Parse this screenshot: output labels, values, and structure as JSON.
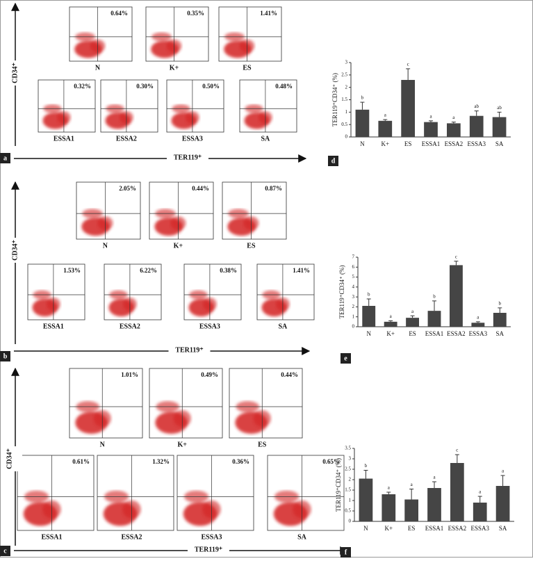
{
  "figure": {
    "sections": [
      {
        "letter": "a",
        "y_label": "CD34⁺",
        "x_label": "TER119⁺",
        "plots": [
          {
            "label": "N",
            "percent": "0.64%"
          },
          {
            "label": "K+",
            "percent": "0.35%"
          },
          {
            "label": "ES",
            "percent": "1.41%"
          },
          {
            "label": "ESSA1",
            "percent": "0.32%"
          },
          {
            "label": "ESSA2",
            "percent": "0.30%"
          },
          {
            "label": "ESSA3",
            "percent": "0.50%"
          },
          {
            "label": "SA",
            "percent": "0.48%"
          }
        ]
      },
      {
        "letter": "b",
        "y_label": "CD34⁺",
        "x_label": "TER119⁺",
        "plots": [
          {
            "label": "N",
            "percent": "2.05%"
          },
          {
            "label": "K+",
            "percent": "0.44%"
          },
          {
            "label": "ES",
            "percent": "0.87%"
          },
          {
            "label": "ESSA1",
            "percent": "1.53%"
          },
          {
            "label": "ESSA2",
            "percent": "6.22%"
          },
          {
            "label": "ESSA3",
            "percent": "0.38%"
          },
          {
            "label": "SA",
            "percent": "1.41%"
          }
        ]
      },
      {
        "letter": "c",
        "y_label": "CD34⁺",
        "x_label": "TER119⁺",
        "plots": [
          {
            "label": "N",
            "percent": "1.01%"
          },
          {
            "label": "K+",
            "percent": "0.49%"
          },
          {
            "label": "ES",
            "percent": "0.44%"
          },
          {
            "label": "ESSA1",
            "percent": "0.61%"
          },
          {
            "label": "ESSA2",
            "percent": "1.32%"
          },
          {
            "label": "ESSA3",
            "percent": "0.36%"
          },
          {
            "label": "SA",
            "percent": "0.65%"
          }
        ]
      }
    ]
  },
  "chart_data": [
    {
      "type": "bar",
      "letter": "d",
      "y_label": "TER119⁺CD34⁺ (%)",
      "color": "#454545",
      "categories": [
        "N",
        "K+",
        "ES",
        "ESSA1",
        "ESSA2",
        "ESSA3",
        "SA"
      ],
      "values": [
        1.1,
        0.65,
        2.3,
        0.6,
        0.55,
        0.85,
        0.8
      ],
      "errors": [
        0.3,
        0.05,
        0.45,
        0.05,
        0.05,
        0.2,
        0.2
      ],
      "significance": [
        "b",
        "a",
        "c",
        "a",
        "a",
        "ab",
        "ab"
      ],
      "ylim": [
        0,
        3
      ],
      "yticks": [
        0,
        0.5,
        1,
        1.5,
        2,
        2.5,
        3
      ]
    },
    {
      "type": "bar",
      "letter": "e",
      "y_label": "TER119⁺CD34⁺ (%)",
      "color": "#454545",
      "categories": [
        "N",
        "K+",
        "ES",
        "ESSA1",
        "ESSA2",
        "ESSA3",
        "SA"
      ],
      "values": [
        2.1,
        0.5,
        0.9,
        1.6,
        6.2,
        0.4,
        1.4
      ],
      "errors": [
        0.7,
        0.1,
        0.2,
        1.0,
        0.4,
        0.1,
        0.5
      ],
      "significance": [
        "b",
        "a",
        "a",
        "b",
        "c",
        "a",
        "b"
      ],
      "ylim": [
        0,
        7
      ],
      "yticks": [
        0,
        1,
        2,
        3,
        4,
        5,
        6,
        7
      ]
    },
    {
      "type": "bar",
      "letter": "f",
      "y_label": "TER119⁺CD34⁺ (%)",
      "color": "#454545",
      "categories": [
        "N",
        "K+",
        "ES",
        "ESSA1",
        "ESSA2",
        "ESSA3",
        "SA"
      ],
      "values": [
        2.05,
        1.3,
        1.05,
        1.6,
        2.8,
        0.9,
        1.7
      ],
      "errors": [
        0.4,
        0.1,
        0.5,
        0.3,
        0.4,
        0.3,
        0.5
      ],
      "significance": [
        "b",
        "a",
        "a",
        "a",
        "c",
        "a",
        "a"
      ],
      "ylim": [
        0,
        3.5
      ],
      "yticks": [
        0,
        0.5,
        1,
        1.5,
        2,
        2.5,
        3,
        3.5
      ]
    }
  ]
}
